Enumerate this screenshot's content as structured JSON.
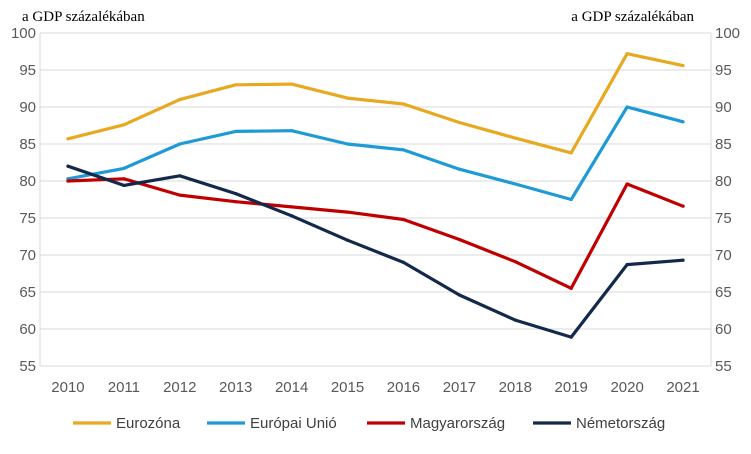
{
  "chart_data": {
    "type": "line",
    "unit_left": "a GDP százalékában",
    "unit_right": "a GDP százalékában",
    "x": [
      "2010",
      "2011",
      "2012",
      "2013",
      "2014",
      "2015",
      "2016",
      "2017",
      "2018",
      "2019",
      "2020",
      "2021"
    ],
    "ylim": [
      55,
      100
    ],
    "yticks": [
      55,
      60,
      65,
      70,
      75,
      80,
      85,
      90,
      95,
      100
    ],
    "grid": true,
    "legend_position": "bottom",
    "series": [
      {
        "name": "Eurozóna",
        "color": "#E8A820",
        "values": [
          85.7,
          87.6,
          91.0,
          93.0,
          93.1,
          91.2,
          90.4,
          87.9,
          85.8,
          83.8,
          97.2,
          95.6
        ]
      },
      {
        "name": "Európai Unió",
        "color": "#1E9AD6",
        "values": [
          80.3,
          81.7,
          85.0,
          86.7,
          86.8,
          85.0,
          84.2,
          81.6,
          79.6,
          77.5,
          90.0,
          88.0
        ]
      },
      {
        "name": "Magyarország",
        "color": "#C00000",
        "values": [
          80.0,
          80.3,
          78.1,
          77.2,
          76.5,
          75.8,
          74.8,
          72.1,
          69.1,
          65.5,
          79.6,
          76.6
        ]
      },
      {
        "name": "Németország",
        "color": "#13294B",
        "values": [
          82.0,
          79.4,
          80.7,
          78.3,
          75.3,
          72.0,
          69.0,
          64.6,
          61.2,
          58.9,
          68.7,
          69.3
        ]
      }
    ]
  }
}
